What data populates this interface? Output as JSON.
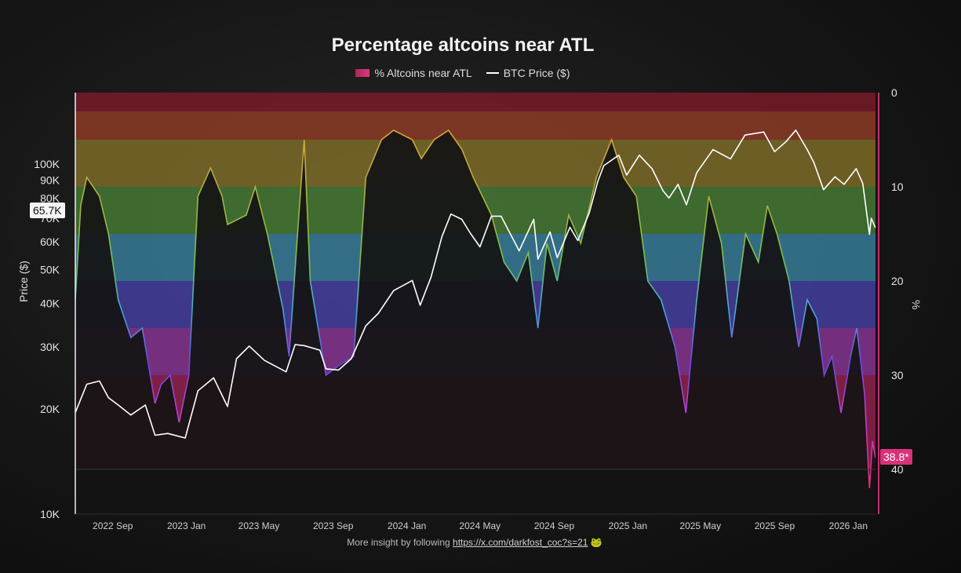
{
  "chart_data": {
    "type": "line",
    "title": "Percentage altcoins near ATL",
    "legend": [
      {
        "name": "% Altcoins near ATL",
        "color": "#d0306e"
      },
      {
        "name": "BTC Price ($)",
        "color": "#ffffff"
      }
    ],
    "legend_placement": "top-center",
    "ylabel_left": "Price ($)",
    "ylabel_right": "%",
    "y_left_scale": "log",
    "y_left_range": [
      10000,
      160000
    ],
    "y_left_ticks": [
      {
        "value": 10000,
        "label": "10K"
      },
      {
        "value": 20000,
        "label": "20K"
      },
      {
        "value": 30000,
        "label": "30K"
      },
      {
        "value": 40000,
        "label": "40K"
      },
      {
        "value": 50000,
        "label": "50K"
      },
      {
        "value": 60000,
        "label": "60K"
      },
      {
        "value": 70000,
        "label": "70K"
      },
      {
        "value": 80000,
        "label": "80K"
      },
      {
        "value": 90000,
        "label": "90K"
      },
      {
        "value": 100000,
        "label": "100K"
      }
    ],
    "y_right_inverted": true,
    "y_right_range": [
      0,
      45
    ],
    "y_right_ticks": [
      0,
      10,
      20,
      30,
      40
    ],
    "x_range": [
      "2022-07-01",
      "2026-02-15"
    ],
    "x_ticks": [
      {
        "date": "2022-09-01",
        "label": "2022 Sep"
      },
      {
        "date": "2023-01-01",
        "label": "2023 Jan"
      },
      {
        "date": "2023-05-01",
        "label": "2023 May"
      },
      {
        "date": "2023-09-01",
        "label": "2023 Sep"
      },
      {
        "date": "2024-01-01",
        "label": "2024 Jan"
      },
      {
        "date": "2024-05-01",
        "label": "2024 May"
      },
      {
        "date": "2024-09-01",
        "label": "2024 Sep"
      },
      {
        "date": "2025-01-01",
        "label": "2025 Jan"
      },
      {
        "date": "2025-05-01",
        "label": "2025 May"
      },
      {
        "date": "2025-09-01",
        "label": "2025 Sep"
      },
      {
        "date": "2026-01-01",
        "label": "2026 Jan"
      }
    ],
    "bands": [
      {
        "from": 0,
        "to": 2,
        "color": "#8a1e2c"
      },
      {
        "from": 2,
        "to": 5,
        "color": "#a4432a"
      },
      {
        "from": 5,
        "to": 10,
        "color": "#8f7b2c"
      },
      {
        "from": 10,
        "to": 15,
        "color": "#4f8a3a"
      },
      {
        "from": 15,
        "to": 20,
        "color": "#3f8fb0"
      },
      {
        "from": 20,
        "to": 25,
        "color": "#4e46b8"
      },
      {
        "from": 25,
        "to": 30,
        "color": "#9a3aa8"
      },
      {
        "from": 30,
        "to": 40,
        "color": "#a8245a"
      }
    ],
    "series": [
      {
        "name": "BTC Price ($)",
        "points": [
          [
            "2022-07-01",
            19500
          ],
          [
            "2022-07-20",
            23500
          ],
          [
            "2022-08-10",
            24000
          ],
          [
            "2022-08-25",
            21500
          ],
          [
            "2022-09-10",
            20500
          ],
          [
            "2022-10-01",
            19200
          ],
          [
            "2022-10-25",
            20500
          ],
          [
            "2022-11-10",
            16800
          ],
          [
            "2022-12-01",
            17000
          ],
          [
            "2022-12-30",
            16500
          ],
          [
            "2023-01-20",
            22500
          ],
          [
            "2023-02-15",
            24500
          ],
          [
            "2023-03-10",
            20300
          ],
          [
            "2023-03-25",
            27800
          ],
          [
            "2023-04-15",
            30200
          ],
          [
            "2023-05-10",
            27500
          ],
          [
            "2023-06-15",
            25500
          ],
          [
            "2023-06-30",
            30500
          ],
          [
            "2023-07-15",
            30300
          ],
          [
            "2023-08-10",
            29400
          ],
          [
            "2023-08-20",
            26000
          ],
          [
            "2023-09-10",
            25800
          ],
          [
            "2023-10-01",
            27800
          ],
          [
            "2023-10-25",
            34500
          ],
          [
            "2023-11-15",
            37500
          ],
          [
            "2023-12-10",
            43500
          ],
          [
            "2024-01-10",
            46500
          ],
          [
            "2024-01-23",
            39500
          ],
          [
            "2024-02-10",
            47500
          ],
          [
            "2024-02-28",
            62000
          ],
          [
            "2024-03-14",
            72000
          ],
          [
            "2024-04-01",
            69500
          ],
          [
            "2024-04-15",
            63500
          ],
          [
            "2024-05-01",
            58000
          ],
          [
            "2024-05-20",
            71000
          ],
          [
            "2024-06-05",
            71000
          ],
          [
            "2024-06-25",
            61000
          ],
          [
            "2024-07-05",
            56500
          ],
          [
            "2024-07-29",
            69500
          ],
          [
            "2024-08-05",
            53500
          ],
          [
            "2024-08-25",
            64000
          ],
          [
            "2024-09-06",
            54000
          ],
          [
            "2024-09-27",
            66000
          ],
          [
            "2024-10-10",
            60500
          ],
          [
            "2024-10-29",
            72500
          ],
          [
            "2024-11-12",
            89000
          ],
          [
            "2024-11-22",
            99000
          ],
          [
            "2024-12-17",
            106000
          ],
          [
            "2024-12-30",
            93000
          ],
          [
            "2025-01-20",
            106000
          ],
          [
            "2025-02-10",
            97000
          ],
          [
            "2025-02-28",
            84000
          ],
          [
            "2025-03-10",
            80000
          ],
          [
            "2025-03-25",
            87500
          ],
          [
            "2025-04-08",
            76500
          ],
          [
            "2025-04-25",
            94500
          ],
          [
            "2025-05-22",
            110000
          ],
          [
            "2025-06-20",
            103500
          ],
          [
            "2025-07-14",
            121000
          ],
          [
            "2025-08-14",
            123500
          ],
          [
            "2025-09-01",
            108500
          ],
          [
            "2025-09-20",
            116000
          ],
          [
            "2025-10-06",
            125000
          ],
          [
            "2025-10-25",
            110000
          ],
          [
            "2025-11-05",
            101000
          ],
          [
            "2025-11-21",
            84500
          ],
          [
            "2025-12-10",
            92000
          ],
          [
            "2025-12-25",
            87500
          ],
          [
            "2026-01-14",
            97000
          ],
          [
            "2026-01-25",
            88000
          ],
          [
            "2026-02-05",
            63000
          ],
          [
            "2026-02-08",
            70000
          ],
          [
            "2026-02-15",
            65700
          ]
        ]
      },
      {
        "name": "% Altcoins near ATL",
        "points": [
          [
            "2022-07-01",
            22
          ],
          [
            "2022-07-10",
            12
          ],
          [
            "2022-07-20",
            9
          ],
          [
            "2022-08-10",
            11
          ],
          [
            "2022-08-25",
            15
          ],
          [
            "2022-09-10",
            22
          ],
          [
            "2022-10-01",
            26
          ],
          [
            "2022-10-20",
            25
          ],
          [
            "2022-11-10",
            33
          ],
          [
            "2022-11-20",
            31
          ],
          [
            "2022-12-05",
            30
          ],
          [
            "2022-12-20",
            35
          ],
          [
            "2023-01-05",
            30
          ],
          [
            "2023-01-20",
            11
          ],
          [
            "2023-02-10",
            8
          ],
          [
            "2023-03-01",
            11
          ],
          [
            "2023-03-10",
            14
          ],
          [
            "2023-04-10",
            13
          ],
          [
            "2023-04-25",
            10
          ],
          [
            "2023-05-15",
            15
          ],
          [
            "2023-06-10",
            23
          ],
          [
            "2023-06-20",
            28
          ],
          [
            "2023-07-05",
            14
          ],
          [
            "2023-07-15",
            5
          ],
          [
            "2023-07-25",
            20
          ],
          [
            "2023-08-20",
            30
          ],
          [
            "2023-09-10",
            29
          ],
          [
            "2023-10-05",
            28
          ],
          [
            "2023-10-25",
            9
          ],
          [
            "2023-11-20",
            5
          ],
          [
            "2023-12-10",
            4
          ],
          [
            "2024-01-10",
            5
          ],
          [
            "2024-01-25",
            7
          ],
          [
            "2024-02-15",
            5
          ],
          [
            "2024-03-10",
            4
          ],
          [
            "2024-04-01",
            6
          ],
          [
            "2024-04-20",
            9
          ],
          [
            "2024-05-05",
            11
          ],
          [
            "2024-05-20",
            13
          ],
          [
            "2024-06-10",
            18
          ],
          [
            "2024-07-01",
            20
          ],
          [
            "2024-07-20",
            17
          ],
          [
            "2024-08-05",
            25
          ],
          [
            "2024-08-20",
            16
          ],
          [
            "2024-09-06",
            20
          ],
          [
            "2024-09-25",
            13
          ],
          [
            "2024-10-15",
            16
          ],
          [
            "2024-11-10",
            9
          ],
          [
            "2024-12-05",
            5
          ],
          [
            "2024-12-25",
            9
          ],
          [
            "2025-01-15",
            11
          ],
          [
            "2025-02-03",
            20
          ],
          [
            "2025-02-25",
            22
          ],
          [
            "2025-03-20",
            27
          ],
          [
            "2025-04-07",
            34
          ],
          [
            "2025-04-25",
            22
          ],
          [
            "2025-05-15",
            11
          ],
          [
            "2025-06-05",
            16
          ],
          [
            "2025-06-22",
            26
          ],
          [
            "2025-07-15",
            15
          ],
          [
            "2025-08-05",
            18
          ],
          [
            "2025-08-20",
            12
          ],
          [
            "2025-09-05",
            15
          ],
          [
            "2025-09-25",
            20
          ],
          [
            "2025-10-11",
            27
          ],
          [
            "2025-10-25",
            22
          ],
          [
            "2025-11-10",
            24
          ],
          [
            "2025-11-22",
            30
          ],
          [
            "2025-12-05",
            28
          ],
          [
            "2025-12-20",
            34
          ],
          [
            "2026-01-05",
            28
          ],
          [
            "2026-01-15",
            25
          ],
          [
            "2026-01-28",
            32
          ],
          [
            "2026-02-05",
            42
          ],
          [
            "2026-02-10",
            37
          ],
          [
            "2026-02-15",
            38.8
          ]
        ]
      }
    ],
    "current_price_label": "65.7K",
    "current_pct_label": "38.8*"
  },
  "footer": {
    "text": "More insight by following",
    "link": "https://x.com/darkfost_coc?s=21",
    "emoji": "🐸"
  }
}
